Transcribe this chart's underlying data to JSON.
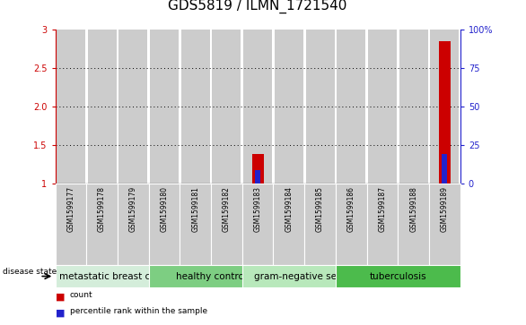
{
  "title": "GDS5819 / ILMN_1721540",
  "samples": [
    "GSM1599177",
    "GSM1599178",
    "GSM1599179",
    "GSM1599180",
    "GSM1599181",
    "GSM1599182",
    "GSM1599183",
    "GSM1599184",
    "GSM1599185",
    "GSM1599186",
    "GSM1599187",
    "GSM1599188",
    "GSM1599189"
  ],
  "count_values": [
    0,
    0,
    0,
    0,
    0,
    0,
    1.38,
    0,
    0,
    0,
    0,
    0,
    2.85
  ],
  "percentile_values": [
    0,
    0,
    0,
    0,
    0,
    0,
    9,
    0,
    0,
    0,
    0,
    0,
    19
  ],
  "ylim_left": [
    1,
    3
  ],
  "ylim_right": [
    0,
    100
  ],
  "yticks_left": [
    1.0,
    1.5,
    2.0,
    2.5,
    3.0
  ],
  "yticks_right": [
    0,
    25,
    50,
    75,
    100
  ],
  "disease_groups": [
    {
      "label": "metastatic breast cancer",
      "start": 0,
      "end": 3,
      "color": "#d4edda"
    },
    {
      "label": "healthy control",
      "start": 3,
      "end": 6,
      "color": "#7dce82"
    },
    {
      "label": "gram-negative sepsis",
      "start": 6,
      "end": 9,
      "color": "#b8e8bb"
    },
    {
      "label": "tuberculosis",
      "start": 9,
      "end": 12,
      "color": "#4cbb4c"
    }
  ],
  "count_color": "#cc0000",
  "percentile_color": "#2222cc",
  "bar_bg_color": "#cccccc",
  "label_color_left": "#cc0000",
  "label_color_right": "#2222cc",
  "disease_label": "disease state",
  "legend_count": "count",
  "legend_percentile": "percentile rank within the sample",
  "title_fontsize": 11,
  "tick_fontsize": 7,
  "sample_fontsize": 5.5,
  "disease_fontsize": 7.5,
  "n_samples": 13
}
